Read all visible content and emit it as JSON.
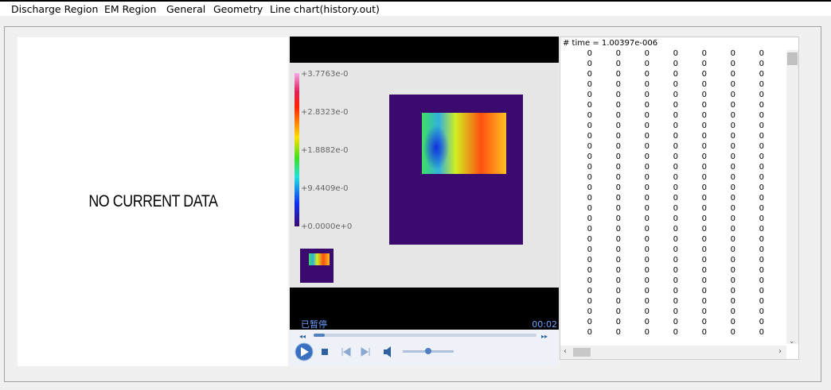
{
  "menu": [
    "Discharge Region",
    "EM Region",
    "General",
    "Geometry",
    "Line chart(history.out)"
  ],
  "left_panel": {
    "message": "NO CURRENT DATA"
  },
  "player": {
    "colorbar_labels": [
      "+3.7763e-0",
      "+2.8323e-0",
      "+1.8882e-0",
      "+9.4409e-0",
      "+0.0000e+0"
    ],
    "status": "已暂停",
    "time": "00:02"
  },
  "output": {
    "header": "# time = 1.00397e-006",
    "rows": [
      [
        0,
        0,
        0,
        0,
        0,
        0,
        0
      ],
      [
        0,
        0,
        0,
        0,
        0,
        0,
        0
      ],
      [
        0,
        0,
        0,
        0,
        0,
        0,
        0
      ],
      [
        0,
        0,
        0,
        0,
        0,
        0,
        0
      ],
      [
        0,
        0,
        0,
        0,
        0,
        0,
        0
      ],
      [
        0,
        0,
        0,
        0,
        0,
        0,
        0
      ],
      [
        0,
        0,
        0,
        0,
        0,
        0,
        0
      ],
      [
        0,
        0,
        0,
        0,
        0,
        0,
        0
      ],
      [
        0,
        0,
        0,
        0,
        0,
        0,
        0
      ],
      [
        0,
        0,
        0,
        0,
        0,
        0,
        0
      ],
      [
        0,
        0,
        0,
        0,
        0,
        0,
        0
      ],
      [
        0,
        0,
        0,
        0,
        0,
        0,
        0
      ],
      [
        0,
        0,
        0,
        0,
        0,
        0,
        0
      ],
      [
        0,
        0,
        0,
        0,
        0,
        0,
        0
      ],
      [
        0,
        0,
        0,
        0,
        0,
        0,
        0
      ],
      [
        0,
        0,
        0,
        0,
        0,
        0,
        0
      ],
      [
        0,
        0,
        0,
        0,
        0,
        0,
        0
      ],
      [
        0,
        0,
        0,
        0,
        0,
        0,
        0
      ],
      [
        0,
        0,
        0,
        0,
        0,
        0,
        0
      ],
      [
        0,
        0,
        0,
        0,
        0,
        0,
        0
      ],
      [
        0,
        0,
        0,
        0,
        0,
        0,
        0
      ],
      [
        0,
        0,
        0,
        0,
        0,
        0,
        0
      ],
      [
        0,
        0,
        0,
        0,
        0,
        0,
        0
      ],
      [
        0,
        0,
        0,
        0,
        0,
        0,
        0
      ],
      [
        0,
        0,
        0,
        0,
        0,
        0,
        0
      ],
      [
        0,
        0,
        0,
        0,
        0,
        0,
        0
      ],
      [
        0,
        0,
        0,
        0,
        0,
        0,
        0
      ],
      [
        0,
        0,
        0,
        0,
        0,
        0,
        0
      ]
    ]
  }
}
